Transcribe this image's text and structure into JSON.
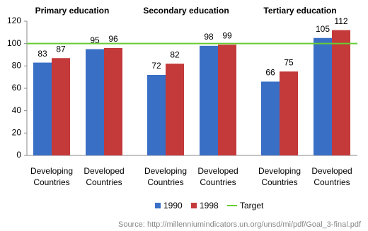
{
  "chart_data": {
    "type": "bar",
    "group_titles": [
      "Primary education",
      "Secondary education",
      "Tertiary education"
    ],
    "categories": [
      "Developing Countries",
      "Developed Countries",
      "Developing Countries",
      "Developed Countries",
      "Developing Countries",
      "Developed Countries"
    ],
    "series": [
      {
        "name": "1990",
        "color": "#3a6fc6",
        "values": [
          83,
          95,
          72,
          98,
          66,
          105
        ]
      },
      {
        "name": "1998",
        "color": "#c4393a",
        "values": [
          87,
          96,
          82,
          99,
          75,
          112
        ]
      }
    ],
    "target": {
      "name": "Target",
      "value": 100,
      "color": "#66cc33"
    },
    "ylim": [
      0,
      120
    ],
    "yticks": [
      0,
      20,
      40,
      60,
      80,
      100,
      120
    ],
    "source": "Source: http://millenniumindicators.un.org/unsd/mi/pdf/Goal_3-final.pdf"
  }
}
